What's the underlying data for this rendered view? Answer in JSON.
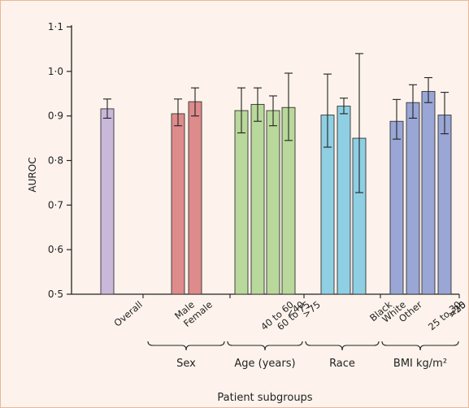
{
  "chart_data": {
    "type": "bar",
    "ylabel": "AUROC",
    "xlabel": "Patient subgroups",
    "ylim": [
      0.5,
      1.1
    ],
    "yticks": [
      "0·5",
      "0·6",
      "0·7",
      "0·8",
      "0·9",
      "1·0",
      "1·1"
    ],
    "grid": false,
    "bars": [
      {
        "label": "Overall",
        "value": 0.916,
        "err_low": 0.895,
        "err_high": 0.938,
        "color": "#c9b8da"
      },
      {
        "label": "Male",
        "value": 0.905,
        "err_low": 0.878,
        "err_high": 0.938,
        "color": "#de8b8b"
      },
      {
        "label": "Female",
        "value": 0.932,
        "err_low": 0.9,
        "err_high": 0.963,
        "color": "#de8b8b"
      },
      {
        "label": "40 to 60",
        "value": 0.912,
        "err_low": 0.862,
        "err_high": 0.963,
        "color": "#b9d89b"
      },
      {
        "label": "<40",
        "value": 0.926,
        "err_low": 0.888,
        "err_high": 0.963,
        "color": "#b9d89b"
      },
      {
        "label": "60 to 75",
        "value": 0.912,
        "err_low": 0.878,
        "err_high": 0.945,
        "color": "#b9d89b"
      },
      {
        "label": ">75",
        "value": 0.919,
        "err_low": 0.845,
        "err_high": 0.996,
        "color": "#b9d89b"
      },
      {
        "label": "Black",
        "value": 0.902,
        "err_low": 0.83,
        "err_high": 0.994,
        "color": "#8fcfe3"
      },
      {
        "label": "White",
        "value": 0.922,
        "err_low": 0.905,
        "err_high": 0.94,
        "color": "#8fcfe3"
      },
      {
        "label": "Other",
        "value": 0.85,
        "err_low": 0.728,
        "err_high": 1.04,
        "color": "#8fcfe3"
      },
      {
        "label": "25 to 30",
        "value": 0.888,
        "err_low": 0.848,
        "err_high": 0.937,
        "color": "#99a6d6"
      },
      {
        "label": "<25",
        "value": 0.93,
        "err_low": 0.895,
        "err_high": 0.97,
        "color": "#99a6d6"
      },
      {
        "label": ">30",
        "value": 0.955,
        "err_low": 0.93,
        "err_high": 0.986,
        "color": "#99a6d6"
      },
      {
        "label": "",
        "value": 0.902,
        "err_low": 0.86,
        "err_high": 0.953,
        "color": "#99a6d6"
      }
    ],
    "groups": [
      {
        "label": "Sex",
        "start": 1,
        "end": 2
      },
      {
        "label": "Age (years)",
        "start": 3,
        "end": 6
      },
      {
        "label": "Race",
        "start": 7,
        "end": 9
      },
      {
        "label": "BMI kg/m²",
        "start": 10,
        "end": 13
      }
    ]
  }
}
